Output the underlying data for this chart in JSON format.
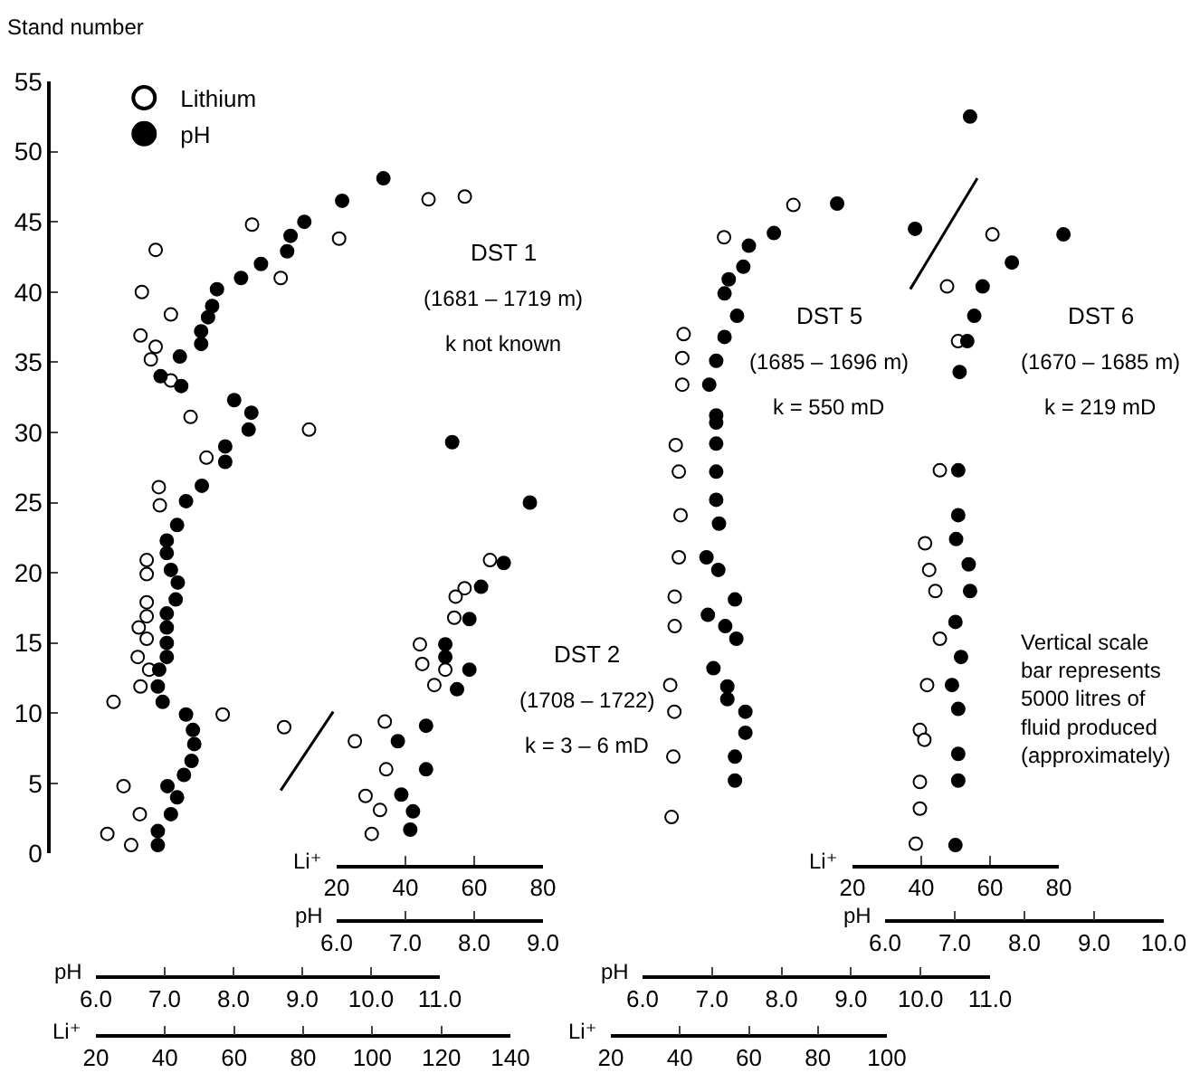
{
  "chart_data": [
    {
      "type": "scatter",
      "title": "DST 1",
      "annotations": [
        "(1681 – 1719 m)",
        "k not known"
      ],
      "xlabel": "Li⁺",
      "x2label": "pH",
      "ylabel": "Stand number",
      "xlim": [
        20,
        140
      ],
      "xticks": [
        20,
        40,
        60,
        80,
        100,
        120,
        140
      ],
      "x2lim": [
        6,
        11
      ],
      "x2ticks": [
        {
          "value": 6,
          "label": "6.0"
        },
        {
          "value": 7,
          "label": "7.0"
        },
        {
          "value": 8,
          "label": "8.0"
        },
        {
          "value": 9,
          "label": "9.0"
        },
        {
          "value": 10,
          "label": "10.0"
        },
        {
          "value": 11,
          "label": "11.0"
        }
      ],
      "ylim": [
        0,
        55
      ],
      "yticks": [
        0,
        5,
        10,
        15,
        20,
        25,
        30,
        35,
        40,
        45,
        50,
        55
      ],
      "marker": "circle",
      "legend": "top left",
      "series": [
        {
          "name": "Lithium",
          "color": "#ffffff",
          "x": [
            116.3,
            126.8,
            65.2,
            90.4,
            73.5,
            37.3,
            33.3,
            41.7,
            32.9,
            37.3,
            35.9,
            41.7,
            47.4,
            81.7,
            52.0,
            38.2,
            38.5,
            34.7,
            34.7,
            34.7,
            34.7,
            32.4,
            34.7,
            32.1,
            35.4,
            32.9,
            25.1,
            56.7,
            74.5,
            28.0,
            32.7,
            23.3,
            30.2
          ],
          "values": [
            46.6,
            46.8,
            44.8,
            43.8,
            41.0,
            43.0,
            40.0,
            38.4,
            36.9,
            36.1,
            35.2,
            33.7,
            31.1,
            30.2,
            28.2,
            26.1,
            24.8,
            20.9,
            19.9,
            17.9,
            16.9,
            16.1,
            15.3,
            14.0,
            13.1,
            11.9,
            10.8,
            9.9,
            9.0,
            4.8,
            2.8,
            1.4,
            0.6
          ]
        },
        {
          "type": "line",
          "marker": "none",
          "color": "#000000",
          "x": [
            73.5,
            88.7
          ],
          "values": [
            4.5,
            10.1
          ]
        },
        {
          "name": "pH",
          "color": "#000000",
          "axis": "x2",
          "x": [
            10.18,
            9.58,
            9.03,
            8.83,
            8.78,
            8.4,
            8.11,
            7.76,
            7.69,
            7.63,
            7.53,
            7.53,
            7.22,
            6.94,
            7.24,
            8.01,
            8.26,
            8.22,
            7.88,
            7.88,
            7.54,
            7.31,
            7.18,
            7.03,
            7.03,
            7.09,
            7.19,
            7.16,
            7.03,
            7.03,
            7.03,
            7.03,
            6.92,
            6.9,
            6.97,
            7.31,
            7.41,
            7.43,
            7.39,
            7.28,
            7.04,
            7.18,
            7.09,
            6.9,
            6.9
          ],
          "values": [
            48.1,
            46.5,
            45.0,
            44.0,
            42.9,
            42.0,
            41.0,
            40.2,
            39.0,
            38.2,
            37.2,
            36.3,
            35.4,
            34.0,
            33.3,
            32.3,
            31.4,
            30.2,
            29.0,
            27.9,
            26.2,
            25.1,
            23.4,
            22.3,
            21.4,
            20.2,
            19.3,
            18.1,
            17.1,
            16.1,
            15.0,
            14.0,
            13.1,
            11.9,
            10.8,
            9.9,
            8.8,
            7.8,
            6.6,
            5.6,
            4.8,
            4.0,
            2.8,
            1.6,
            0.6
          ]
        }
      ]
    },
    {
      "type": "scatter",
      "title": "DST 2",
      "annotations": [
        "(1708 – 1722)",
        "k = 3 – 6 mD"
      ],
      "xlabel": "Li⁺",
      "x2label": "pH",
      "tick_labels": "x",
      "xlim": [
        20,
        80
      ],
      "xticks": [
        20,
        40,
        60,
        80
      ],
      "x2lim": [
        6,
        9
      ],
      "x2ticks": [
        {
          "value": 6,
          "label": "6.0"
        },
        {
          "value": 7,
          "label": "7.0"
        },
        {
          "value": 8,
          "label": "8.0"
        },
        {
          "value": 9,
          "label": "9.0"
        }
      ],
      "ylim": [
        0,
        55
      ],
      "marker": "circle",
      "series": [
        {
          "color": "#ffffff",
          "x": [
            64.6,
            57.2,
            54.6,
            54.2,
            44.2,
            44.9,
            51.6,
            48.4,
            34.0,
            25.3,
            34.4,
            28.4,
            32.6,
            30.2
          ],
          "values": [
            20.9,
            18.9,
            18.3,
            16.8,
            14.9,
            13.5,
            13.1,
            12.0,
            9.4,
            8.0,
            6.0,
            4.1,
            3.1,
            1.4
          ]
        },
        {
          "color": "#000000",
          "axis": "x2",
          "x": [
            7.68,
            8.81,
            8.43,
            8.1,
            7.93,
            7.58,
            7.58,
            7.93,
            7.75,
            7.3,
            6.89,
            7.3,
            6.94,
            7.11,
            7.07
          ],
          "values": [
            29.3,
            25.0,
            20.7,
            19.0,
            16.7,
            14.9,
            14.0,
            13.1,
            11.7,
            9.1,
            8.0,
            6.0,
            4.2,
            3.0,
            1.7
          ]
        }
      ]
    },
    {
      "type": "scatter",
      "title": "DST 5",
      "annotations": [
        "(1685 – 1696 m)",
        "k = 550 mD"
      ],
      "xlabel": "Li⁺",
      "x2label": "pH",
      "tick_labels": "x",
      "xlim": [
        20,
        100
      ],
      "xticks": [
        20,
        40,
        60,
        80,
        100
      ],
      "x2lim": [
        6,
        11
      ],
      "x2ticks": [
        {
          "value": 6,
          "label": "6.0"
        },
        {
          "value": 7,
          "label": "7.0"
        },
        {
          "value": 8,
          "label": "8.0"
        },
        {
          "value": 9,
          "label": "9.0"
        },
        {
          "value": 10,
          "label": "10.0"
        },
        {
          "value": 11,
          "label": "11.0"
        }
      ],
      "ylim": [
        0,
        55
      ],
      "marker": "circle",
      "series": [
        {
          "color": "#ffffff",
          "x": [
            72.9,
            52.8,
            41.1,
            40.7,
            40.7,
            38.8,
            39.7,
            40.2,
            39.7,
            38.5,
            38.5,
            37.2,
            38.4,
            38.1,
            37.6
          ],
          "values": [
            46.2,
            43.9,
            37.0,
            35.3,
            33.4,
            29.1,
            27.2,
            24.1,
            21.1,
            18.3,
            16.2,
            12.0,
            10.1,
            6.9,
            2.6
          ]
        },
        {
          "color": "#000000",
          "axis": "x2",
          "x": [
            8.8,
            7.89,
            7.53,
            7.45,
            7.24,
            7.18,
            7.36,
            7.18,
            7.06,
            6.96,
            7.06,
            7.06,
            7.06,
            7.06,
            7.06,
            7.1,
            6.92,
            7.09,
            7.33,
            6.94,
            7.19,
            7.35,
            7.02,
            7.22,
            7.22,
            7.48,
            7.48,
            7.33,
            7.33
          ],
          "values": [
            46.3,
            44.2,
            43.3,
            41.8,
            40.9,
            39.9,
            38.3,
            36.8,
            35.1,
            33.4,
            31.2,
            30.7,
            29.2,
            27.2,
            25.2,
            23.5,
            21.1,
            20.2,
            18.1,
            17.0,
            16.2,
            15.3,
            13.2,
            11.9,
            11.0,
            10.1,
            8.6,
            6.9,
            5.2
          ]
        }
      ]
    },
    {
      "type": "scatter",
      "title": "DST 6",
      "annotations": [
        "(1670 – 1685 m)",
        "k = 219 mD",
        "Vertical scale bar represents 5000 litres of fluid produced (approximately)"
      ],
      "xlabel": "Li⁺",
      "x2label": "pH",
      "tick_labels": "x",
      "xlim": [
        20,
        80
      ],
      "xticks": [
        20,
        40,
        60,
        80
      ],
      "x2lim": [
        6,
        10
      ],
      "x2ticks": [
        {
          "value": 6,
          "label": "6.0"
        },
        {
          "value": 7,
          "label": "7.0"
        },
        {
          "value": 8,
          "label": "8.0"
        },
        {
          "value": 9,
          "label": "9.0"
        },
        {
          "value": 10,
          "label": "10.0"
        }
      ],
      "ylim": [
        0,
        55
      ],
      "marker": "circle",
      "series": [
        {
          "type": "line",
          "marker": "none",
          "color": "#000000",
          "x": [
            36.8,
            56.3
          ],
          "values": [
            40.2,
            48.1
          ]
        },
        {
          "color": "#ffffff",
          "x": [
            60.7,
            47.5,
            50.7,
            45.4,
            41.1,
            42.3,
            44.1,
            45.4,
            41.7,
            39.6,
            40.9,
            39.6,
            39.6,
            38.4
          ],
          "values": [
            44.1,
            40.4,
            36.5,
            27.3,
            22.1,
            20.2,
            18.7,
            15.3,
            12.0,
            8.8,
            8.1,
            5.1,
            3.2,
            0.7
          ]
        },
        {
          "color": "#000000",
          "axis": "x2",
          "x": [
            7.22,
            6.43,
            8.56,
            7.82,
            7.4,
            7.28,
            7.18,
            7.07,
            7.05,
            7.05,
            7.02,
            7.2,
            7.22,
            7.01,
            7.09,
            6.96,
            7.05,
            7.05,
            7.05,
            7.01
          ],
          "values": [
            52.5,
            44.5,
            44.1,
            42.1,
            40.4,
            38.3,
            36.5,
            34.3,
            27.3,
            24.1,
            22.4,
            20.6,
            18.7,
            16.5,
            14.0,
            12.0,
            10.3,
            7.1,
            5.2,
            0.6
          ]
        }
      ]
    }
  ]
}
